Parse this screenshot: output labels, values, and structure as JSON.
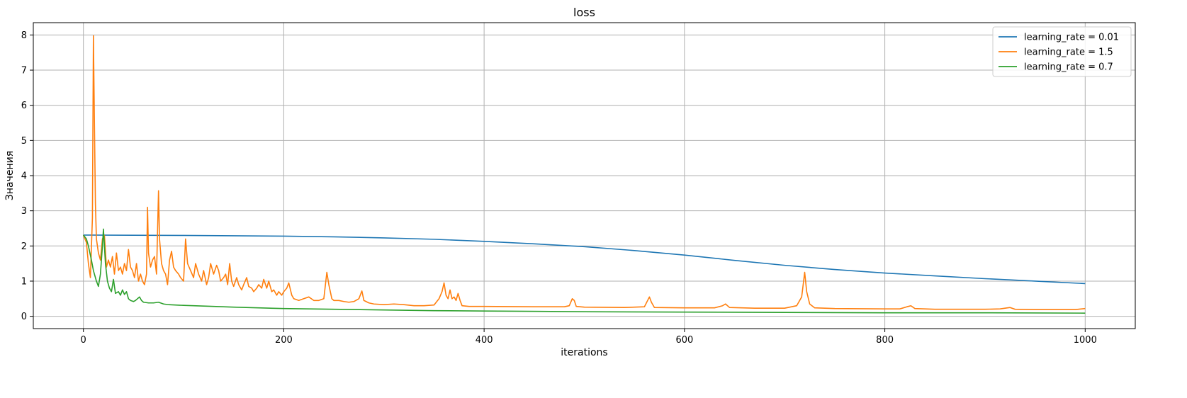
{
  "chart_data": {
    "type": "line",
    "title": "loss",
    "xlabel": "iterations",
    "ylabel": "Значения",
    "xlim": [
      -50,
      1050
    ],
    "ylim": [
      -0.35,
      8.35
    ],
    "xticks": [
      0,
      200,
      400,
      600,
      800,
      1000
    ],
    "yticks": [
      0,
      1,
      2,
      3,
      4,
      5,
      6,
      7,
      8
    ],
    "grid": true,
    "legend_position": "top-right",
    "series": [
      {
        "name": "learning_rate = 0.01",
        "color": "#1f77b4",
        "points": [
          [
            0,
            2.31
          ],
          [
            50,
            2.305
          ],
          [
            100,
            2.3
          ],
          [
            150,
            2.29
          ],
          [
            200,
            2.28
          ],
          [
            250,
            2.26
          ],
          [
            300,
            2.23
          ],
          [
            350,
            2.19
          ],
          [
            400,
            2.13
          ],
          [
            450,
            2.06
          ],
          [
            500,
            1.98
          ],
          [
            550,
            1.87
          ],
          [
            600,
            1.74
          ],
          [
            650,
            1.59
          ],
          [
            700,
            1.45
          ],
          [
            750,
            1.33
          ],
          [
            800,
            1.23
          ],
          [
            850,
            1.15
          ],
          [
            900,
            1.07
          ],
          [
            950,
            1.0
          ],
          [
            1000,
            0.93
          ]
        ]
      },
      {
        "name": "learning_rate = 1.5",
        "color": "#ff7f0e",
        "points": [
          [
            0,
            2.31
          ],
          [
            3,
            2.1
          ],
          [
            5,
            1.5
          ],
          [
            7,
            1.1
          ],
          [
            9,
            2.8
          ],
          [
            10,
            7.98
          ],
          [
            11,
            5.5
          ],
          [
            12,
            3.2
          ],
          [
            13,
            2.2
          ],
          [
            15,
            1.8
          ],
          [
            17,
            1.6
          ],
          [
            19,
            2.2
          ],
          [
            21,
            2.3
          ],
          [
            23,
            1.4
          ],
          [
            25,
            1.6
          ],
          [
            27,
            1.4
          ],
          [
            29,
            1.7
          ],
          [
            31,
            1.2
          ],
          [
            33,
            1.8
          ],
          [
            35,
            1.3
          ],
          [
            37,
            1.4
          ],
          [
            39,
            1.2
          ],
          [
            41,
            1.5
          ],
          [
            43,
            1.3
          ],
          [
            45,
            1.9
          ],
          [
            47,
            1.4
          ],
          [
            49,
            1.3
          ],
          [
            51,
            1.1
          ],
          [
            53,
            1.5
          ],
          [
            55,
            1.0
          ],
          [
            57,
            1.2
          ],
          [
            59,
            1.0
          ],
          [
            61,
            0.9
          ],
          [
            63,
            1.2
          ],
          [
            64,
            3.1
          ],
          [
            65,
            1.8
          ],
          [
            67,
            1.4
          ],
          [
            69,
            1.6
          ],
          [
            71,
            1.7
          ],
          [
            73,
            1.2
          ],
          [
            75,
            3.57
          ],
          [
            76,
            2.2
          ],
          [
            78,
            1.5
          ],
          [
            80,
            1.3
          ],
          [
            82,
            1.2
          ],
          [
            84,
            0.9
          ],
          [
            86,
            1.6
          ],
          [
            88,
            1.85
          ],
          [
            90,
            1.4
          ],
          [
            92,
            1.3
          ],
          [
            95,
            1.2
          ],
          [
            97,
            1.1
          ],
          [
            100,
            1.0
          ],
          [
            102,
            2.2
          ],
          [
            104,
            1.5
          ],
          [
            107,
            1.3
          ],
          [
            110,
            1.1
          ],
          [
            112,
            1.5
          ],
          [
            115,
            1.2
          ],
          [
            118,
            1.0
          ],
          [
            120,
            1.3
          ],
          [
            123,
            0.9
          ],
          [
            125,
            1.1
          ],
          [
            127,
            1.5
          ],
          [
            130,
            1.2
          ],
          [
            133,
            1.45
          ],
          [
            135,
            1.3
          ],
          [
            137,
            1.0
          ],
          [
            140,
            1.1
          ],
          [
            142,
            1.2
          ],
          [
            144,
            0.9
          ],
          [
            146,
            1.5
          ],
          [
            148,
            1.0
          ],
          [
            150,
            0.85
          ],
          [
            153,
            1.1
          ],
          [
            155,
            0.9
          ],
          [
            158,
            0.75
          ],
          [
            160,
            0.9
          ],
          [
            163,
            1.1
          ],
          [
            165,
            0.85
          ],
          [
            168,
            0.8
          ],
          [
            170,
            0.7
          ],
          [
            173,
            0.8
          ],
          [
            175,
            0.9
          ],
          [
            178,
            0.8
          ],
          [
            180,
            1.05
          ],
          [
            183,
            0.8
          ],
          [
            185,
            1.0
          ],
          [
            188,
            0.7
          ],
          [
            190,
            0.75
          ],
          [
            193,
            0.6
          ],
          [
            195,
            0.7
          ],
          [
            198,
            0.6
          ],
          [
            200,
            0.7
          ],
          [
            203,
            0.8
          ],
          [
            205,
            0.95
          ],
          [
            208,
            0.6
          ],
          [
            210,
            0.5
          ],
          [
            215,
            0.45
          ],
          [
            220,
            0.5
          ],
          [
            225,
            0.55
          ],
          [
            230,
            0.45
          ],
          [
            235,
            0.45
          ],
          [
            240,
            0.5
          ],
          [
            243,
            1.25
          ],
          [
            245,
            0.9
          ],
          [
            248,
            0.5
          ],
          [
            250,
            0.45
          ],
          [
            255,
            0.45
          ],
          [
            260,
            0.42
          ],
          [
            265,
            0.4
          ],
          [
            270,
            0.42
          ],
          [
            275,
            0.5
          ],
          [
            278,
            0.72
          ],
          [
            280,
            0.45
          ],
          [
            285,
            0.38
          ],
          [
            290,
            0.35
          ],
          [
            300,
            0.33
          ],
          [
            310,
            0.35
          ],
          [
            320,
            0.33
          ],
          [
            330,
            0.3
          ],
          [
            340,
            0.3
          ],
          [
            350,
            0.32
          ],
          [
            355,
            0.5
          ],
          [
            358,
            0.7
          ],
          [
            360,
            0.95
          ],
          [
            362,
            0.6
          ],
          [
            364,
            0.5
          ],
          [
            366,
            0.75
          ],
          [
            368,
            0.5
          ],
          [
            370,
            0.55
          ],
          [
            372,
            0.45
          ],
          [
            374,
            0.65
          ],
          [
            376,
            0.45
          ],
          [
            378,
            0.3
          ],
          [
            385,
            0.28
          ],
          [
            400,
            0.28
          ],
          [
            450,
            0.27
          ],
          [
            480,
            0.27
          ],
          [
            485,
            0.3
          ],
          [
            488,
            0.5
          ],
          [
            490,
            0.45
          ],
          [
            492,
            0.28
          ],
          [
            500,
            0.26
          ],
          [
            540,
            0.25
          ],
          [
            560,
            0.27
          ],
          [
            565,
            0.55
          ],
          [
            567,
            0.4
          ],
          [
            570,
            0.25
          ],
          [
            600,
            0.24
          ],
          [
            630,
            0.24
          ],
          [
            638,
            0.3
          ],
          [
            641,
            0.35
          ],
          [
            645,
            0.25
          ],
          [
            670,
            0.23
          ],
          [
            700,
            0.23
          ],
          [
            712,
            0.3
          ],
          [
            717,
            0.55
          ],
          [
            720,
            1.25
          ],
          [
            722,
            0.7
          ],
          [
            725,
            0.35
          ],
          [
            730,
            0.24
          ],
          [
            750,
            0.22
          ],
          [
            800,
            0.21
          ],
          [
            815,
            0.21
          ],
          [
            822,
            0.27
          ],
          [
            826,
            0.3
          ],
          [
            830,
            0.22
          ],
          [
            850,
            0.2
          ],
          [
            900,
            0.2
          ],
          [
            915,
            0.21
          ],
          [
            925,
            0.25
          ],
          [
            930,
            0.2
          ],
          [
            950,
            0.19
          ],
          [
            990,
            0.19
          ],
          [
            1000,
            0.22
          ]
        ]
      },
      {
        "name": "learning_rate = 0.7",
        "color": "#2ca02c",
        "points": [
          [
            0,
            2.31
          ],
          [
            3,
            2.2
          ],
          [
            5,
            2.0
          ],
          [
            8,
            1.6
          ],
          [
            10,
            1.3
          ],
          [
            13,
            1.0
          ],
          [
            15,
            0.85
          ],
          [
            17,
            1.2
          ],
          [
            19,
            2.0
          ],
          [
            20,
            2.48
          ],
          [
            22,
            1.5
          ],
          [
            24,
            1.0
          ],
          [
            26,
            0.8
          ],
          [
            28,
            0.7
          ],
          [
            30,
            1.05
          ],
          [
            32,
            0.65
          ],
          [
            35,
            0.7
          ],
          [
            37,
            0.6
          ],
          [
            39,
            0.75
          ],
          [
            41,
            0.62
          ],
          [
            43,
            0.7
          ],
          [
            45,
            0.5
          ],
          [
            47,
            0.45
          ],
          [
            50,
            0.42
          ],
          [
            52,
            0.45
          ],
          [
            54,
            0.5
          ],
          [
            56,
            0.55
          ],
          [
            58,
            0.45
          ],
          [
            60,
            0.4
          ],
          [
            65,
            0.38
          ],
          [
            70,
            0.38
          ],
          [
            75,
            0.4
          ],
          [
            80,
            0.35
          ],
          [
            85,
            0.33
          ],
          [
            100,
            0.31
          ],
          [
            150,
            0.26
          ],
          [
            200,
            0.22
          ],
          [
            250,
            0.2
          ],
          [
            300,
            0.18
          ],
          [
            350,
            0.16
          ],
          [
            400,
            0.15
          ],
          [
            500,
            0.13
          ],
          [
            600,
            0.12
          ],
          [
            700,
            0.11
          ],
          [
            800,
            0.1
          ],
          [
            900,
            0.1
          ],
          [
            1000,
            0.09
          ]
        ]
      }
    ]
  }
}
